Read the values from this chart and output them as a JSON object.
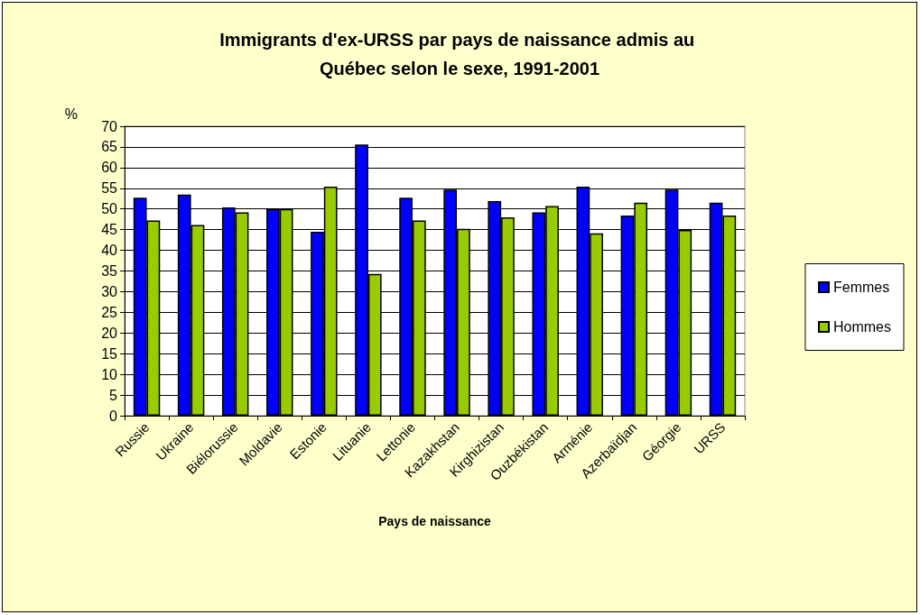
{
  "chart_data": {
    "type": "bar",
    "title": "Immigrants d'ex-URSS par pays de naissance admis au Québec selon le sexe, 1991-2001",
    "xlabel": "Pays de naissance",
    "ylabel": "%",
    "categories": [
      "Russie",
      "Ukraine",
      "Biélorussie",
      "Moldavie",
      "Estonie",
      "Lituanie",
      "Lettonie",
      "Kazakhstan",
      "Kirghizistan",
      "Ouzbékistan",
      "Arménie",
      "Azerbaïdjan",
      "Géorgie",
      "URSS"
    ],
    "series": [
      {
        "name": "Femmes",
        "color": "#0000ff",
        "values": [
          52.7,
          53.5,
          50.4,
          50,
          44.5,
          65.6,
          52.7,
          54.7,
          51.9,
          49.2,
          55.4,
          48.4,
          54.7,
          51.5
        ]
      },
      {
        "name": "Hommes",
        "color": "#99cc00",
        "values": [
          47.2,
          46.1,
          49.2,
          50,
          55.4,
          34.3,
          47.2,
          45.2,
          48.0,
          50.7,
          44.1,
          51.5,
          44.9,
          48.4
        ]
      }
    ],
    "ylim": [
      0,
      70
    ],
    "yticks": [
      0,
      5,
      10,
      15,
      20,
      25,
      30,
      35,
      40,
      45,
      50,
      55,
      60,
      65,
      70
    ],
    "grid": "y",
    "legend": "right"
  }
}
